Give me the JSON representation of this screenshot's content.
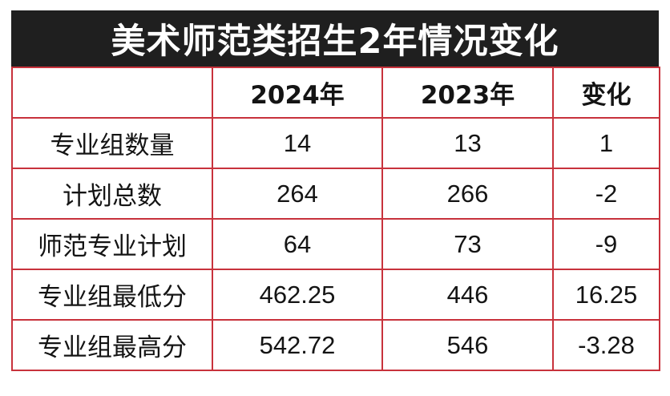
{
  "title": "美术师范类招生2年情况变化",
  "columns": [
    "",
    "2024年",
    "2023年",
    "变化"
  ],
  "rows": [
    {
      "label": "专业组数量",
      "y2024": "14",
      "y2023": "13",
      "change": "1"
    },
    {
      "label": "计划总数",
      "y2024": "264",
      "y2023": "266",
      "change": "-2"
    },
    {
      "label": "师范专业计划",
      "y2024": "64",
      "y2023": "73",
      "change": "-9"
    },
    {
      "label": "专业组最低分",
      "y2024": "462.25",
      "y2023": "446",
      "change": "16.25"
    },
    {
      "label": "专业组最高分",
      "y2024": "542.72",
      "y2023": "546",
      "change": "-3.28"
    }
  ],
  "colors": {
    "title_bg": "#1f1f1f",
    "title_text": "#ffffff",
    "border": "#c8323c",
    "text": "#141414"
  }
}
